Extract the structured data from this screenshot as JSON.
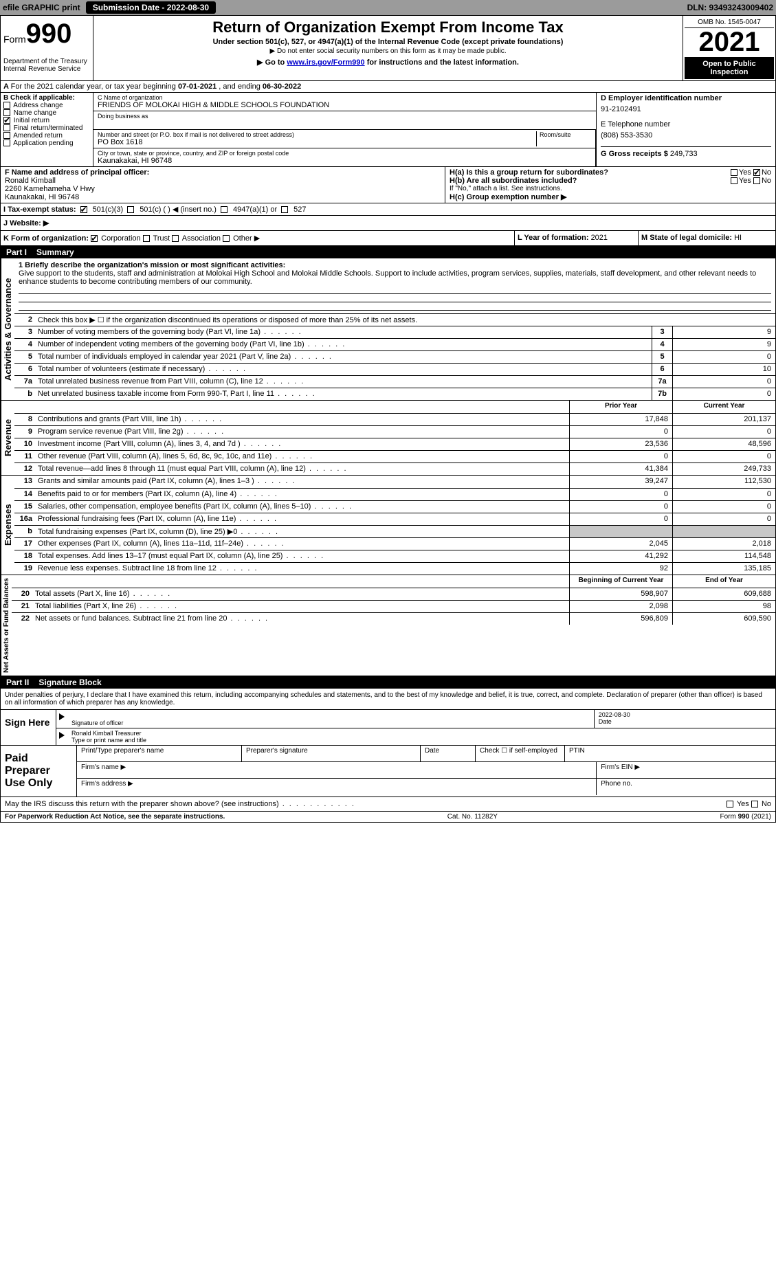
{
  "topbar": {
    "efile": "efile GRAPHIC print",
    "submission_label": "Submission Date - 2022-08-30",
    "dln": "DLN: 93493243009402"
  },
  "header": {
    "form_word": "Form",
    "form_num": "990",
    "title": "Return of Organization Exempt From Income Tax",
    "subtitle": "Under section 501(c), 527, or 4947(a)(1) of the Internal Revenue Code (except private foundations)",
    "note_ssn": "▶ Do not enter social security numbers on this form as it may be made public.",
    "goto_prefix": "▶ Go to ",
    "goto_link": "www.irs.gov/Form990",
    "goto_suffix": " for instructions and the latest information.",
    "dept": "Department of the Treasury",
    "irs": "Internal Revenue Service",
    "omb": "OMB No. 1545-0047",
    "year": "2021",
    "open": "Open to Public Inspection"
  },
  "period": {
    "text_a": "For the 2021 calendar year, or tax year beginning ",
    "begin": "07-01-2021",
    "text_b": " , and ending ",
    "end": "06-30-2022"
  },
  "boxB": {
    "label": "B Check if applicable:",
    "items": [
      "Address change",
      "Name change",
      "Initial return",
      "Final return/terminated",
      "Amended return",
      "Application pending"
    ],
    "checked_idx": 2
  },
  "boxC": {
    "name_label": "C Name of organization",
    "org": "FRIENDS OF MOLOKAI HIGH & MIDDLE SCHOOLS FOUNDATION",
    "dba_label": "Doing business as",
    "street_label": "Number and street (or P.O. box if mail is not delivered to street address)",
    "room_label": "Room/suite",
    "street": "PO Box 1618",
    "city_label": "City or town, state or province, country, and ZIP or foreign postal code",
    "city": "Kaunakakai, HI  96748"
  },
  "boxD": {
    "ein_label": "D Employer identification number",
    "ein": "91-2102491",
    "phone_label": "E Telephone number",
    "phone": "(808) 553-3530",
    "gross_label": "G Gross receipts $ ",
    "gross": "249,733"
  },
  "boxF": {
    "label": "F  Name and address of principal officer:",
    "name": "Ronald Kimball",
    "addr1": "2260 Kamehameha V Hwy",
    "addr2": "Kaunakakai, HI  96748"
  },
  "boxH": {
    "a_label": "H(a)  Is this a group return for subordinates?",
    "a_yes": "Yes",
    "a_no": "No",
    "b_label": "H(b)  Are all subordinates included?",
    "b_yes": "Yes",
    "b_no": "No",
    "b_note": "If \"No,\" attach a list. See instructions.",
    "c_label": "H(c)  Group exemption number ▶"
  },
  "taxI": {
    "label": "I  Tax-exempt status:",
    "opt1": "501(c)(3)",
    "opt2": "501(c) (  ) ◀ (insert no.)",
    "opt3": "4947(a)(1) or",
    "opt4": "527"
  },
  "taxJ": {
    "label": "J  Website: ▶"
  },
  "boxK": {
    "label": "K Form of organization:",
    "opts": [
      "Corporation",
      "Trust",
      "Association",
      "Other ▶"
    ],
    "checked_idx": 0
  },
  "boxL": {
    "label": "L Year of formation: ",
    "val": "2021"
  },
  "boxM": {
    "label": "M State of legal domicile: ",
    "val": "HI"
  },
  "part1": {
    "header_part": "Part I",
    "header_title": "Summary",
    "side_gov": "Activities & Governance",
    "side_rev": "Revenue",
    "side_exp": "Expenses",
    "side_net": "Net Assets or Fund Balances",
    "line1_label": "1  Briefly describe the organization's mission or most significant activities:",
    "mission": "Give support to the students, staff and administration at Molokai High School and Molokai Middle Schools. Support to include activities, program services, supplies, materials, staff development, and other relevant needs to enhance students to become contributing members of our community.",
    "line2": "Check this box ▶ ☐  if the organization discontinued its operations or disposed of more than 25% of its net assets.",
    "rows_gov": [
      {
        "n": "3",
        "d": "Number of voting members of the governing body (Part VI, line 1a)",
        "box": "3",
        "v": "9"
      },
      {
        "n": "4",
        "d": "Number of independent voting members of the governing body (Part VI, line 1b)",
        "box": "4",
        "v": "9"
      },
      {
        "n": "5",
        "d": "Total number of individuals employed in calendar year 2021 (Part V, line 2a)",
        "box": "5",
        "v": "0"
      },
      {
        "n": "6",
        "d": "Total number of volunteers (estimate if necessary)",
        "box": "6",
        "v": "10"
      },
      {
        "n": "7a",
        "d": "Total unrelated business revenue from Part VIII, column (C), line 12",
        "box": "7a",
        "v": "0"
      },
      {
        "n": "b",
        "d": "Net unrelated business taxable income from Form 990-T, Part I, line 11",
        "box": "7b",
        "v": "0"
      }
    ],
    "hdr_prior": "Prior Year",
    "hdr_curr": "Current Year",
    "rows_rev": [
      {
        "n": "8",
        "d": "Contributions and grants (Part VIII, line 1h)",
        "p": "17,848",
        "c": "201,137"
      },
      {
        "n": "9",
        "d": "Program service revenue (Part VIII, line 2g)",
        "p": "0",
        "c": "0"
      },
      {
        "n": "10",
        "d": "Investment income (Part VIII, column (A), lines 3, 4, and 7d )",
        "p": "23,536",
        "c": "48,596"
      },
      {
        "n": "11",
        "d": "Other revenue (Part VIII, column (A), lines 5, 6d, 8c, 9c, 10c, and 11e)",
        "p": "0",
        "c": "0"
      },
      {
        "n": "12",
        "d": "Total revenue—add lines 8 through 11 (must equal Part VIII, column (A), line 12)",
        "p": "41,384",
        "c": "249,733"
      }
    ],
    "rows_exp": [
      {
        "n": "13",
        "d": "Grants and similar amounts paid (Part IX, column (A), lines 1–3 )",
        "p": "39,247",
        "c": "112,530"
      },
      {
        "n": "14",
        "d": "Benefits paid to or for members (Part IX, column (A), line 4)",
        "p": "0",
        "c": "0"
      },
      {
        "n": "15",
        "d": "Salaries, other compensation, employee benefits (Part IX, column (A), lines 5–10)",
        "p": "0",
        "c": "0"
      },
      {
        "n": "16a",
        "d": "Professional fundraising fees (Part IX, column (A), line 11e)",
        "p": "0",
        "c": "0"
      },
      {
        "n": "b",
        "d": "Total fundraising expenses (Part IX, column (D), line 25) ▶0",
        "p": "",
        "c": "",
        "shade": true
      },
      {
        "n": "17",
        "d": "Other expenses (Part IX, column (A), lines 11a–11d, 11f–24e)",
        "p": "2,045",
        "c": "2,018"
      },
      {
        "n": "18",
        "d": "Total expenses. Add lines 13–17 (must equal Part IX, column (A), line 25)",
        "p": "41,292",
        "c": "114,548"
      },
      {
        "n": "19",
        "d": "Revenue less expenses. Subtract line 18 from line 12",
        "p": "92",
        "c": "135,185"
      }
    ],
    "hdr_begin": "Beginning of Current Year",
    "hdr_end": "End of Year",
    "rows_net": [
      {
        "n": "20",
        "d": "Total assets (Part X, line 16)",
        "p": "598,907",
        "c": "609,688"
      },
      {
        "n": "21",
        "d": "Total liabilities (Part X, line 26)",
        "p": "2,098",
        "c": "98"
      },
      {
        "n": "22",
        "d": "Net assets or fund balances. Subtract line 21 from line 20",
        "p": "596,809",
        "c": "609,590"
      }
    ]
  },
  "part2": {
    "header_part": "Part II",
    "header_title": "Signature Block",
    "penalty": "Under penalties of perjury, I declare that I have examined this return, including accompanying schedules and statements, and to the best of my knowledge and belief, it is true, correct, and complete. Declaration of preparer (other than officer) is based on all information of which preparer has any knowledge.",
    "sign_here": "Sign Here",
    "sig_officer": "Signature of officer",
    "sig_date": "2022-08-30",
    "date_lbl": "Date",
    "officer_name": "Ronald Kimball Treasurer",
    "type_name": "Type or print name and title",
    "paid": "Paid Preparer Use Only",
    "prep_name": "Print/Type preparer's name",
    "prep_sig": "Preparer's signature",
    "prep_date": "Date",
    "prep_check": "Check ☐ if self-employed",
    "ptin": "PTIN",
    "firm_name": "Firm's name  ▶",
    "firm_ein": "Firm's EIN ▶",
    "firm_addr": "Firm's address ▶",
    "phone": "Phone no.",
    "discuss": "May the IRS discuss this return with the preparer shown above? (see instructions)",
    "yes": "Yes",
    "no": "No"
  },
  "footer": {
    "pra": "For Paperwork Reduction Act Notice, see the separate instructions.",
    "cat": "Cat. No. 11282Y",
    "form": "Form 990 (2021)"
  }
}
